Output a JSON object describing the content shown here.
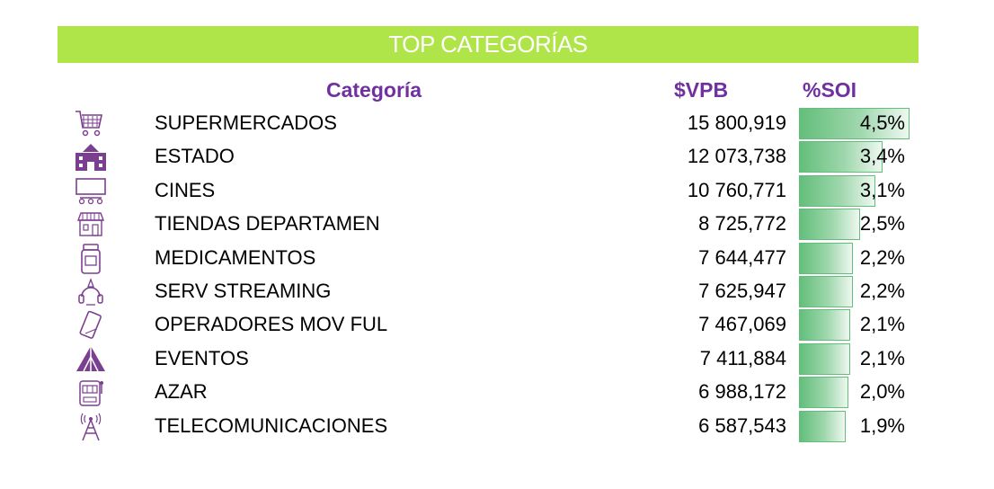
{
  "title": "TOP CATEGORÍAS",
  "headers": {
    "category": "Categoría",
    "vpb": "$VPB",
    "soi": "%SOI"
  },
  "colors": {
    "title_bg": "#b0e549",
    "header_text": "#7030a0",
    "bar": "#63be7b",
    "icon": "#7b3f8f"
  },
  "rows": [
    {
      "icon": "shopping-cart-icon",
      "name": "SUPERMERCADOS",
      "value": "15 800,919",
      "pct": "4,5%",
      "pct_value": 4.5
    },
    {
      "icon": "government-building-icon",
      "name": "ESTADO",
      "value": "12 073,738",
      "pct": "3,4%",
      "pct_value": 3.4
    },
    {
      "icon": "cinema-screen-icon",
      "name": "CINES",
      "value": "10 760,771",
      "pct": "3,1%",
      "pct_value": 3.1
    },
    {
      "icon": "storefront-icon",
      "name": "TIENDAS DEPARTAMEN",
      "value": "8 725,772",
      "pct": "2,5%",
      "pct_value": 2.5
    },
    {
      "icon": "medicine-bottle-icon",
      "name": "MEDICAMENTOS",
      "value": "7 644,477",
      "pct": "2,2%",
      "pct_value": 2.2
    },
    {
      "icon": "streaming-headset-icon",
      "name": "SERV STREAMING",
      "value": "7 625,947",
      "pct": "2,2%",
      "pct_value": 2.2
    },
    {
      "icon": "mobile-phone-icon",
      "name": "OPERADORES MOV FUL",
      "value": "7 467,069",
      "pct": "2,1%",
      "pct_value": 2.1
    },
    {
      "icon": "circus-tent-icon",
      "name": "EVENTOS",
      "value": "7 411,884",
      "pct": "2,1%",
      "pct_value": 2.1
    },
    {
      "icon": "slot-machine-icon",
      "name": "AZAR",
      "value": "6 988,172",
      "pct": "2,0%",
      "pct_value": 2.0
    },
    {
      "icon": "antenna-tower-icon",
      "name": "TELECOMUNICACIONES",
      "value": "6 587,543",
      "pct": "1,9%",
      "pct_value": 1.9
    }
  ]
}
